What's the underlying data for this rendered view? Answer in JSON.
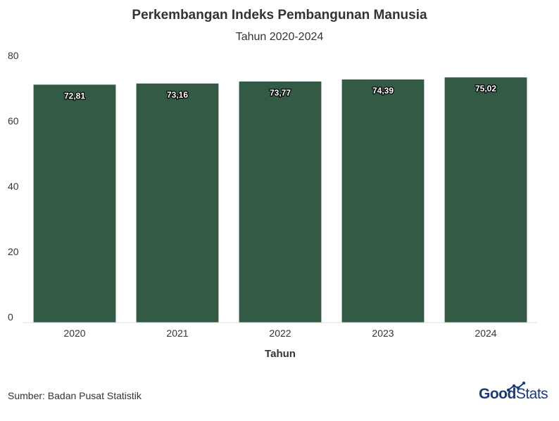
{
  "header": {
    "title": "Perkembangan Indeks Pembangunan Manusia",
    "subtitle": "Tahun 2020-2024"
  },
  "footer": {
    "source": "Sumber: Badan Pusat Statistik",
    "logo_part1": "Good",
    "logo_part2": "Stats"
  },
  "colors": {
    "bar": "#335a45",
    "axis_text": "#333333",
    "label_text": "#ffffff",
    "logo": "#1a3a7a"
  },
  "chart_data": {
    "type": "bar",
    "title": "Perkembangan Indeks Pembangunan Manusia",
    "subtitle": "Tahun 2020-2024",
    "categories": [
      "2020",
      "2021",
      "2022",
      "2023",
      "2024"
    ],
    "values": [
      72.81,
      73.16,
      73.77,
      74.39,
      75.02
    ],
    "value_labels": [
      "72,81",
      "73,16",
      "73,77",
      "74,39",
      "75,02"
    ],
    "xlabel": "Tahun",
    "ylabel": "",
    "ylim": [
      0,
      80
    ],
    "yticks": [
      0,
      20,
      40,
      60,
      80
    ],
    "grid": false,
    "legend": "none"
  }
}
